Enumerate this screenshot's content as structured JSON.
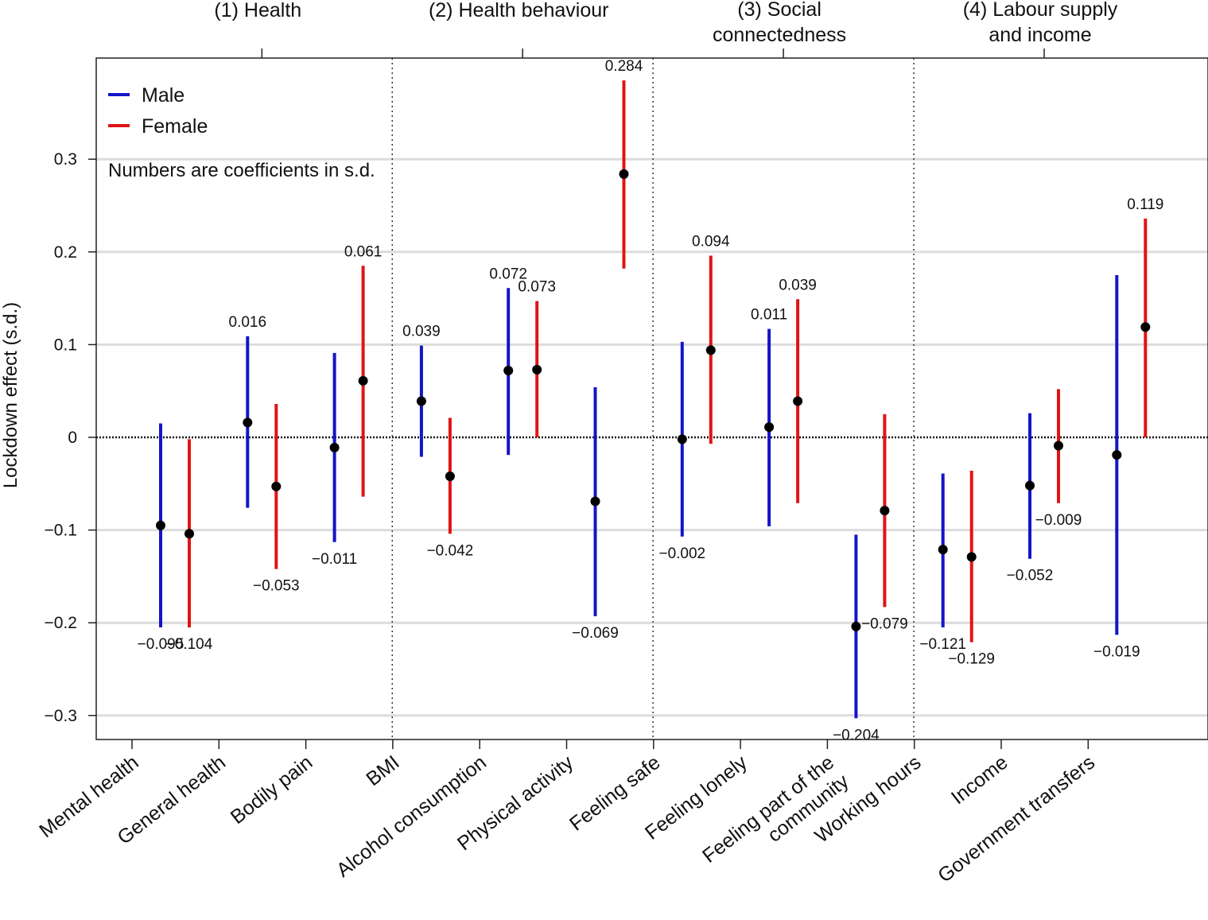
{
  "chart_data": {
    "type": "errorbar",
    "ylabel": "Lockdown effect (s.d.)",
    "ylim": [
      -0.33,
      0.41
    ],
    "yticks": [
      -0.3,
      -0.2,
      -0.1,
      0,
      0.1,
      0.2,
      0.3
    ],
    "ytick_labels": [
      "−0.3",
      "−0.2",
      "−0.1",
      "0",
      "0.1",
      "0.2",
      "0.3"
    ],
    "note": "Numbers are coefficients in s.d.",
    "legend": [
      {
        "name": "Male",
        "color": "#1414c8"
      },
      {
        "name": "Female",
        "color": "#e01414"
      }
    ],
    "groups": [
      {
        "label_lines": [
          "(1) Health"
        ],
        "categories": [
          0,
          1,
          2
        ]
      },
      {
        "label_lines": [
          "(2) Health behaviour"
        ],
        "categories": [
          3,
          4,
          5
        ]
      },
      {
        "label_lines": [
          "(3) Social",
          "connectedness"
        ],
        "categories": [
          6,
          7,
          8
        ]
      },
      {
        "label_lines": [
          "(4) Labour supply",
          "and income"
        ],
        "categories": [
          9,
          10,
          11
        ]
      }
    ],
    "categories": [
      {
        "label_lines": [
          "Mental health"
        ]
      },
      {
        "label_lines": [
          "General health"
        ]
      },
      {
        "label_lines": [
          "Bodily pain"
        ]
      },
      {
        "label_lines": [
          "BMI"
        ]
      },
      {
        "label_lines": [
          "Alcohol consumption"
        ]
      },
      {
        "label_lines": [
          "Physical activity"
        ]
      },
      {
        "label_lines": [
          "Feeling safe"
        ]
      },
      {
        "label_lines": [
          "Feeling lonely"
        ]
      },
      {
        "label_lines": [
          "Feeling part of the",
          "community"
        ]
      },
      {
        "label_lines": [
          "Working hours"
        ]
      },
      {
        "label_lines": [
          "Income"
        ]
      },
      {
        "label_lines": [
          "Government transfers"
        ]
      }
    ],
    "series": [
      {
        "name": "Male",
        "color": "#1414c8",
        "points": [
          {
            "est": -0.095,
            "lo": -0.205,
            "hi": 0.015,
            "label": "−0.095"
          },
          {
            "est": 0.016,
            "lo": -0.076,
            "hi": 0.109,
            "label": "0.016"
          },
          {
            "est": -0.011,
            "lo": -0.113,
            "hi": 0.091,
            "label": "−0.011"
          },
          {
            "est": 0.039,
            "lo": -0.021,
            "hi": 0.099,
            "label": "0.039"
          },
          {
            "est": 0.072,
            "lo": -0.019,
            "hi": 0.161,
            "label": "0.072"
          },
          {
            "est": -0.069,
            "lo": -0.193,
            "hi": 0.054,
            "label": "−0.069"
          },
          {
            "est": -0.002,
            "lo": -0.107,
            "hi": 0.103,
            "label": "−0.002"
          },
          {
            "est": 0.011,
            "lo": -0.096,
            "hi": 0.117,
            "label": "0.011"
          },
          {
            "est": -0.204,
            "lo": -0.303,
            "hi": -0.105,
            "label": "−0.204"
          },
          {
            "est": -0.121,
            "lo": -0.205,
            "hi": -0.039,
            "label": "−0.121"
          },
          {
            "est": -0.052,
            "lo": -0.131,
            "hi": 0.026,
            "label": "−0.052"
          },
          {
            "est": -0.019,
            "lo": -0.213,
            "hi": 0.175,
            "label": "−0.019"
          }
        ]
      },
      {
        "name": "Female",
        "color": "#e01414",
        "points": [
          {
            "est": -0.104,
            "lo": -0.205,
            "hi": -0.002,
            "label": "−0.104"
          },
          {
            "est": -0.053,
            "lo": -0.142,
            "hi": 0.036,
            "label": "−0.053"
          },
          {
            "est": 0.061,
            "lo": -0.064,
            "hi": 0.185,
            "label": "0.061"
          },
          {
            "est": -0.042,
            "lo": -0.104,
            "hi": 0.021,
            "label": "−0.042"
          },
          {
            "est": 0.073,
            "lo": 0.0,
            "hi": 0.147,
            "label": "0.073"
          },
          {
            "est": 0.284,
            "lo": 0.182,
            "hi": 0.385,
            "label": "0.284"
          },
          {
            "est": 0.094,
            "lo": -0.007,
            "hi": 0.196,
            "label": "0.094"
          },
          {
            "est": 0.039,
            "lo": -0.071,
            "hi": 0.149,
            "label": "0.039"
          },
          {
            "est": -0.079,
            "lo": -0.183,
            "hi": 0.025,
            "label": "−0.079"
          },
          {
            "est": -0.129,
            "lo": -0.221,
            "hi": -0.036,
            "label": "−0.129"
          },
          {
            "est": -0.009,
            "lo": -0.071,
            "hi": 0.052,
            "label": "−0.009"
          },
          {
            "est": 0.119,
            "lo": 0.0,
            "hi": 0.236,
            "label": "0.119"
          }
        ]
      }
    ]
  }
}
